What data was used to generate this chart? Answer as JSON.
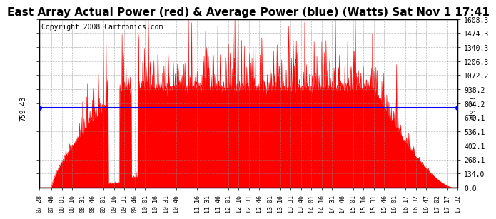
{
  "title": "East Array Actual Power (red) & Average Power (blue) (Watts) Sat Nov 1 17:41",
  "copyright": "Copyright 2008 Cartronics.com",
  "avg_power": 759.43,
  "y_max": 1608.3,
  "y_min": 0.0,
  "y_ticks": [
    0.0,
    134.0,
    268.1,
    402.1,
    536.1,
    670.1,
    804.2,
    938.2,
    1072.2,
    1206.3,
    1340.3,
    1474.3,
    1608.3
  ],
  "y_tick_labels_right": [
    "0.0",
    "134.0",
    "268.1",
    "402.1",
    "536.1",
    "670.1",
    "804.2",
    "938.2",
    "1072.2",
    "1206.3",
    "1340.3",
    "1474.3",
    "1608.3"
  ],
  "x_tick_labels": [
    "07:28",
    "07:46",
    "08:01",
    "08:16",
    "08:31",
    "08:46",
    "09:01",
    "09:16",
    "09:31",
    "09:46",
    "10:01",
    "10:16",
    "10:31",
    "10:46",
    "11:16",
    "11:31",
    "11:46",
    "12:01",
    "12:16",
    "12:31",
    "12:46",
    "13:01",
    "13:16",
    "13:31",
    "13:46",
    "14:01",
    "14:16",
    "14:31",
    "14:46",
    "15:01",
    "15:16",
    "15:31",
    "15:46",
    "16:01",
    "16:17",
    "16:32",
    "16:47",
    "17:02",
    "17:17",
    "17:32"
  ],
  "x_tick_minutes": [
    448,
    466,
    481,
    496,
    511,
    526,
    541,
    556,
    571,
    586,
    601,
    616,
    631,
    646,
    676,
    691,
    706,
    721,
    736,
    751,
    766,
    781,
    796,
    811,
    826,
    841,
    856,
    871,
    886,
    901,
    916,
    931,
    946,
    961,
    977,
    992,
    1007,
    1022,
    1037,
    1052
  ],
  "fill_color": "#FF0000",
  "line_color": "#0000FF",
  "background_color": "#FFFFFF",
  "grid_color": "#888888",
  "title_fontsize": 11,
  "copyright_fontsize": 7,
  "avg_label": "759.43"
}
